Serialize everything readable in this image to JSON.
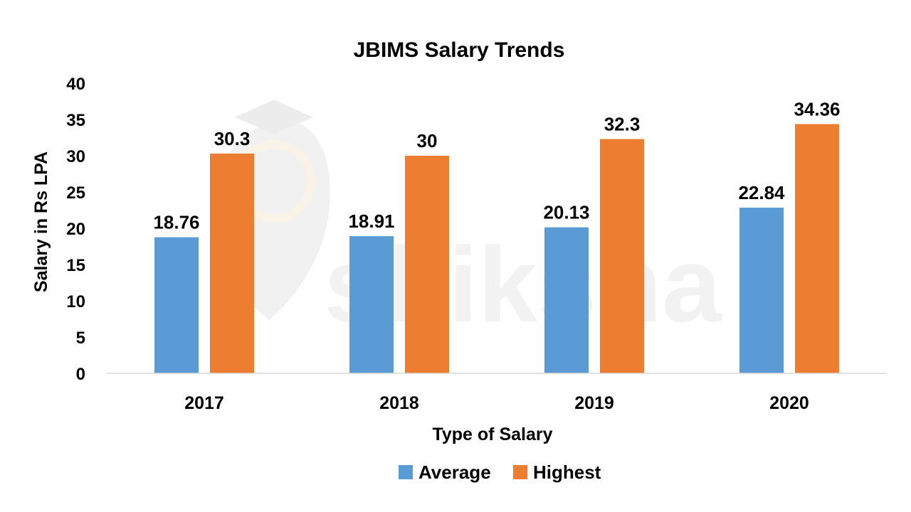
{
  "watermark": {
    "text": "shiksha"
  },
  "colors": {
    "average": "#5b9bd5",
    "highest": "#ed7d31",
    "axis": "#d9d9d9",
    "text": "#000000"
  },
  "chart_data": {
    "type": "bar",
    "title": "JBIMS Salary Trends",
    "xlabel": "Type of Salary",
    "ylabel": "Salary in Rs LPA",
    "categories": [
      "2017",
      "2018",
      "2019",
      "2020"
    ],
    "series": [
      {
        "name": "Average",
        "values": [
          18.76,
          18.91,
          20.13,
          22.84
        ],
        "labels": [
          "18.76",
          "18.91",
          "20.13",
          "22.84"
        ],
        "color": "#5b9bd5"
      },
      {
        "name": "Highest",
        "values": [
          30.3,
          30,
          32.3,
          34.36
        ],
        "labels": [
          "30.3",
          "30",
          "32.3",
          "34.36"
        ],
        "color": "#ed7d31"
      }
    ],
    "ylim": [
      0,
      40
    ],
    "yticks": [
      0,
      5,
      10,
      15,
      20,
      25,
      30,
      35,
      40
    ],
    "grid": false,
    "legend": "bottom"
  }
}
